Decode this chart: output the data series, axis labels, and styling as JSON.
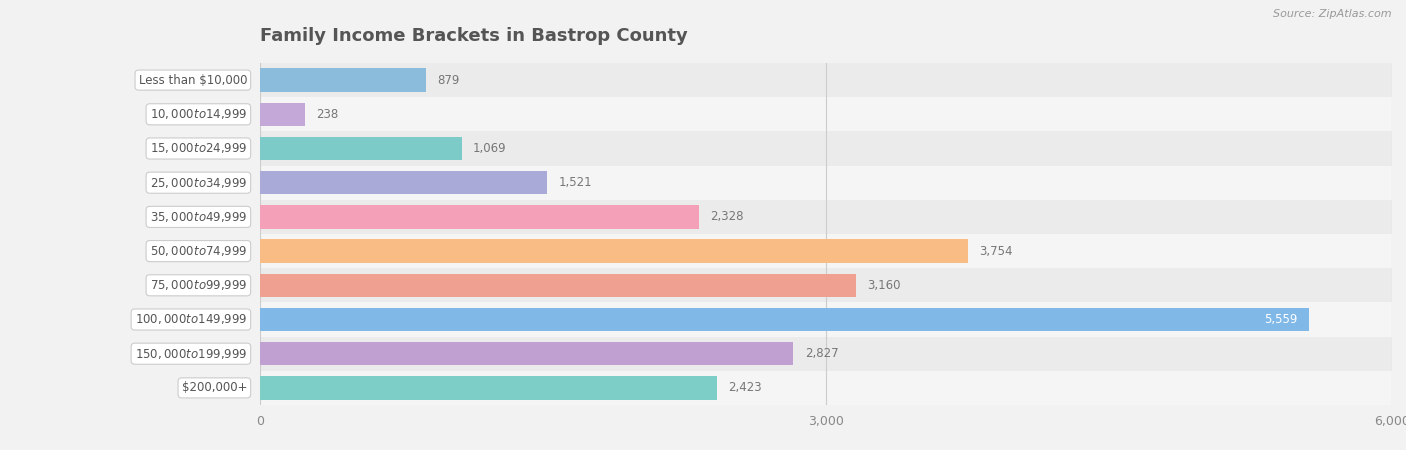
{
  "title": "Family Income Brackets in Bastrop County",
  "source": "Source: ZipAtlas.com",
  "categories": [
    "Less than $10,000",
    "$10,000 to $14,999",
    "$15,000 to $24,999",
    "$25,000 to $34,999",
    "$35,000 to $49,999",
    "$50,000 to $74,999",
    "$75,000 to $99,999",
    "$100,000 to $149,999",
    "$150,000 to $199,999",
    "$200,000+"
  ],
  "values": [
    879,
    238,
    1069,
    1521,
    2328,
    3754,
    3160,
    5559,
    2827,
    2423
  ],
  "colors": [
    "#8BBCDB",
    "#C4A8D8",
    "#7DCBC8",
    "#AAAAD8",
    "#F4A0B8",
    "#F8BC84",
    "#F0A090",
    "#80B8E8",
    "#C0A0D0",
    "#7ECEC8"
  ],
  "xlim": [
    0,
    6000
  ],
  "xticks": [
    0,
    3000,
    6000
  ],
  "background_color": "#f2f2f2",
  "bar_background": "#e6e6e6",
  "row_background_odd": "#ebebeb",
  "row_background_even": "#f5f5f5",
  "title_color": "#555555",
  "label_color": "#555555",
  "value_color_outside": "#666666",
  "value_color_inside": "#ffffff"
}
